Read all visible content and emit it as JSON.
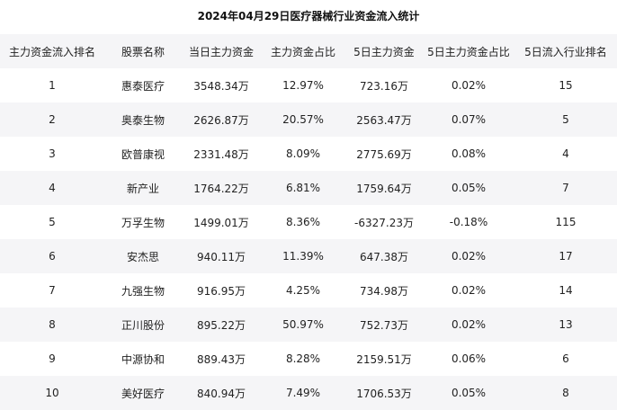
{
  "title": "2024年04月29日医疗器械行业资金流入统计",
  "columns": [
    "主力资金流入排名",
    "股票名称",
    "当日主力资金",
    "主力资金占比",
    "5日主力资金",
    "5日主力资金占比",
    "5日流入行业排名"
  ],
  "rows": [
    [
      "1",
      "惠泰医疗",
      "3548.34万",
      "12.97%",
      "723.16万",
      "0.02%",
      "15"
    ],
    [
      "2",
      "奥泰生物",
      "2626.87万",
      "20.57%",
      "2563.47万",
      "0.07%",
      "5"
    ],
    [
      "3",
      "欧普康视",
      "2331.48万",
      "8.09%",
      "2775.69万",
      "0.08%",
      "4"
    ],
    [
      "4",
      "新产业",
      "1764.22万",
      "6.81%",
      "1759.64万",
      "0.05%",
      "7"
    ],
    [
      "5",
      "万孚生物",
      "1499.01万",
      "8.36%",
      "-6327.23万",
      "-0.18%",
      "115"
    ],
    [
      "6",
      "安杰思",
      "940.11万",
      "11.39%",
      "647.38万",
      "0.02%",
      "17"
    ],
    [
      "7",
      "九强生物",
      "916.95万",
      "4.25%",
      "734.98万",
      "0.02%",
      "14"
    ],
    [
      "8",
      "正川股份",
      "895.22万",
      "50.97%",
      "752.73万",
      "0.02%",
      "13"
    ],
    [
      "9",
      "中源协和",
      "889.43万",
      "8.28%",
      "2159.51万",
      "0.06%",
      "6"
    ],
    [
      "10",
      "美好医疗",
      "840.94万",
      "7.49%",
      "1706.53万",
      "0.05%",
      "8"
    ]
  ]
}
